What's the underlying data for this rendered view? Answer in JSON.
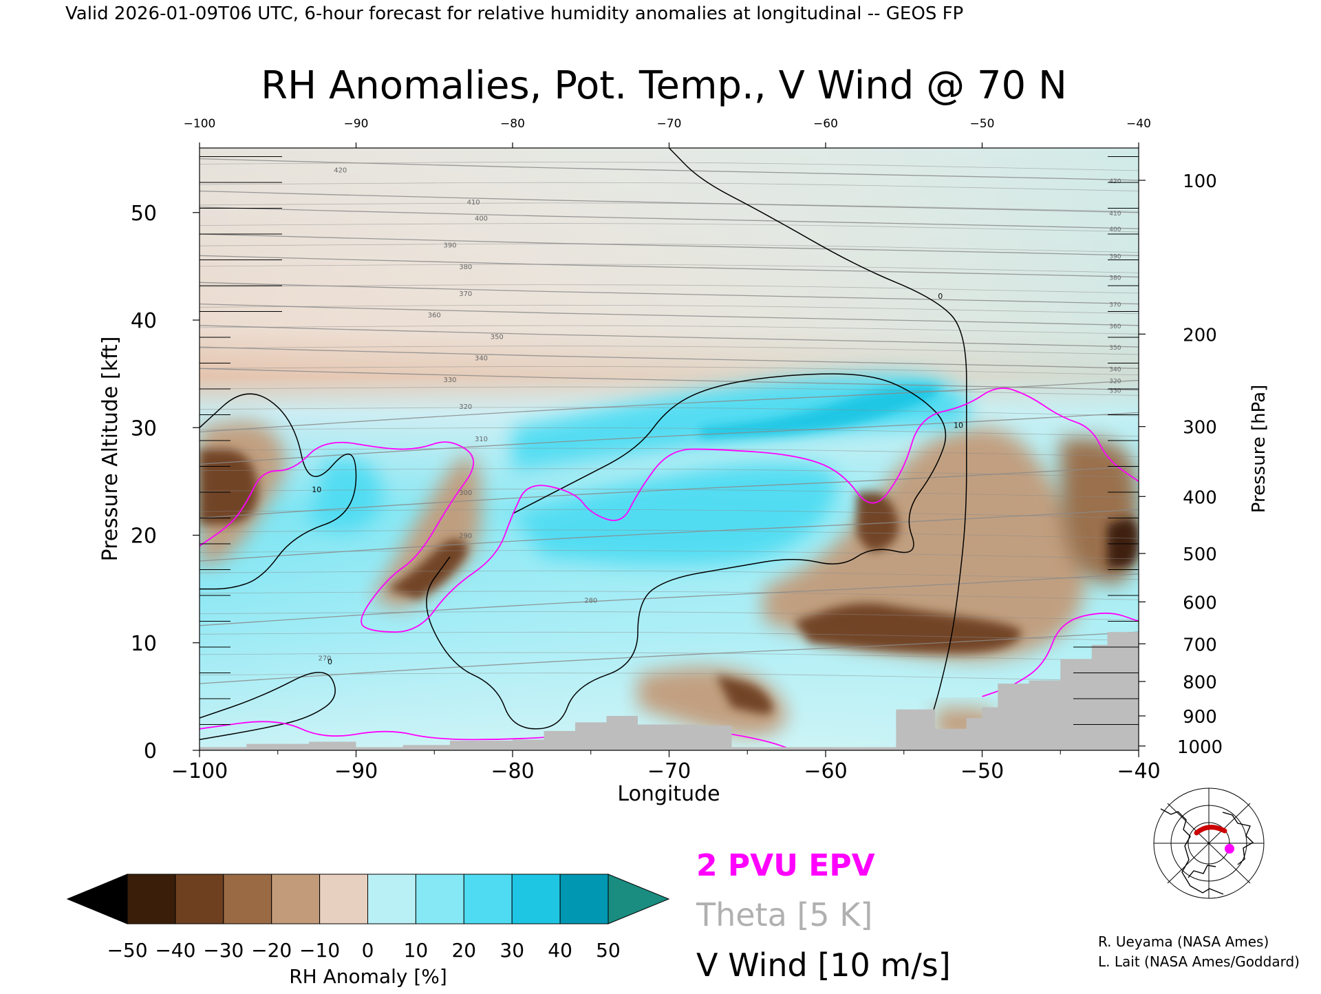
{
  "header": {
    "valid_line": "Valid 2026-01-09T06 UTC, 6-hour forecast for relative humidity anomalies at longitudinal -- GEOS FP"
  },
  "chart_data": {
    "type": "heatmap",
    "title": "RH Anomalies, Pot. Temp., V Wind @ 70 N",
    "xlabel": "Longitude",
    "ylabel": "Pressure Altitude [kft]",
    "y2label": "Pressure [hPa]",
    "xlim": [
      -100,
      -40
    ],
    "ylim": [
      0,
      56
    ],
    "x_ticks": [
      -100,
      -90,
      -80,
      -70,
      -60,
      -50,
      -40
    ],
    "y_ticks": [
      0,
      10,
      20,
      30,
      40,
      50
    ],
    "pressure_ticks": [
      {
        "label": "100",
        "kft": 53.0
      },
      {
        "label": "200",
        "kft": 38.7
      },
      {
        "label": "300",
        "kft": 30.1
      },
      {
        "label": "400",
        "kft": 23.6
      },
      {
        "label": "500",
        "kft": 18.3
      },
      {
        "label": "600",
        "kft": 13.8
      },
      {
        "label": "700",
        "kft": 9.9
      },
      {
        "label": "800",
        "kft": 6.4
      },
      {
        "label": "900",
        "kft": 3.2
      },
      {
        "label": "1000",
        "kft": 0.4
      }
    ],
    "rh_anomaly_regions": [
      {
        "anom": -25,
        "points": [
          [
            -100,
            30
          ],
          [
            -96,
            31
          ],
          [
            -94,
            27
          ],
          [
            -96,
            22
          ],
          [
            -98,
            18
          ],
          [
            -100,
            17
          ]
        ]
      },
      {
        "anom": -45,
        "points": [
          [
            -100,
            28
          ],
          [
            -97,
            28
          ],
          [
            -96,
            24
          ],
          [
            -97,
            21
          ],
          [
            -100,
            21
          ]
        ]
      },
      {
        "anom": -25,
        "points": [
          [
            -89,
            14
          ],
          [
            -87,
            19
          ],
          [
            -85,
            24
          ],
          [
            -83,
            28
          ],
          [
            -82,
            26
          ],
          [
            -82,
            19
          ],
          [
            -84,
            16
          ],
          [
            -87,
            13
          ]
        ]
      },
      {
        "anom": -40,
        "points": [
          [
            -88,
            15
          ],
          [
            -86,
            17
          ],
          [
            -84,
            20
          ],
          [
            -82.5,
            19
          ],
          [
            -84,
            16
          ],
          [
            -86,
            14
          ]
        ]
      },
      {
        "anom": -25,
        "points": [
          [
            -64,
            15
          ],
          [
            -60,
            18
          ],
          [
            -57,
            23
          ],
          [
            -55,
            27
          ],
          [
            -52,
            30
          ],
          [
            -48,
            30
          ],
          [
            -45,
            24
          ],
          [
            -43,
            18
          ],
          [
            -44,
            11
          ],
          [
            -49,
            8
          ],
          [
            -55,
            9
          ],
          [
            -60,
            10
          ],
          [
            -64,
            12
          ]
        ]
      },
      {
        "anom": -40,
        "points": [
          [
            -62,
            12
          ],
          [
            -58,
            14
          ],
          [
            -54,
            13
          ],
          [
            -49,
            12
          ],
          [
            -47,
            11
          ],
          [
            -49,
            9
          ],
          [
            -55,
            9
          ],
          [
            -61,
            10
          ]
        ]
      },
      {
        "anom": -40,
        "points": [
          [
            -58,
            24
          ],
          [
            -56,
            24
          ],
          [
            -55,
            20
          ],
          [
            -57,
            18
          ],
          [
            -58,
            20
          ]
        ]
      },
      {
        "anom": -30,
        "points": [
          [
            -45,
            29
          ],
          [
            -42,
            29
          ],
          [
            -40,
            27
          ],
          [
            -40,
            15
          ],
          [
            -44,
            16
          ],
          [
            -45,
            22
          ]
        ]
      },
      {
        "anom": -50,
        "points": [
          [
            -42,
            21
          ],
          [
            -40,
            22
          ],
          [
            -40,
            17
          ],
          [
            -42,
            17
          ]
        ]
      },
      {
        "anom": -25,
        "points": [
          [
            -72,
            7
          ],
          [
            -68,
            8
          ],
          [
            -64,
            7
          ],
          [
            -62,
            3
          ],
          [
            -64,
            1
          ],
          [
            -68,
            2
          ],
          [
            -72,
            4
          ]
        ]
      },
      {
        "anom": -40,
        "points": [
          [
            -67,
            7
          ],
          [
            -64,
            6
          ],
          [
            -63,
            3
          ],
          [
            -66,
            4
          ]
        ]
      },
      {
        "anom": -20,
        "points": [
          [
            -53,
            4
          ],
          [
            -49,
            4
          ],
          [
            -49,
            1
          ],
          [
            -53,
            1
          ]
        ]
      },
      {
        "anom": 30,
        "points": [
          [
            -80,
            30
          ],
          [
            -70,
            33
          ],
          [
            -60,
            35
          ],
          [
            -52,
            35
          ],
          [
            -50,
            30
          ],
          [
            -56,
            30
          ],
          [
            -70,
            28
          ],
          [
            -80,
            26
          ]
        ]
      },
      {
        "anom": 40,
        "points": [
          [
            -68,
            29
          ],
          [
            -60,
            29.5
          ],
          [
            -54,
            32
          ],
          [
            -52,
            34
          ],
          [
            -56,
            34
          ],
          [
            -62,
            31
          ],
          [
            -68,
            30
          ]
        ]
      },
      {
        "anom": 25,
        "points": [
          [
            -92,
            27
          ],
          [
            -89,
            27
          ],
          [
            -88,
            23
          ],
          [
            -90,
            20
          ],
          [
            -93,
            21
          ]
        ]
      },
      {
        "anom": 25,
        "points": [
          [
            -80,
            22
          ],
          [
            -72,
            25
          ],
          [
            -64,
            27
          ],
          [
            -58,
            26
          ],
          [
            -62,
            18
          ],
          [
            -70,
            17
          ],
          [
            -78,
            18
          ]
        ]
      }
    ],
    "theta_levels": [
      {
        "label": "270",
        "x": -92,
        "y": 8.6
      },
      {
        "label": "280",
        "x": -75,
        "y": 14
      },
      {
        "label": "290",
        "x": -83,
        "y": 20
      },
      {
        "label": "300",
        "x": -83,
        "y": 24
      },
      {
        "label": "310",
        "x": -82,
        "y": 29
      },
      {
        "label": "320",
        "x": -83,
        "y": 32
      },
      {
        "label": "330",
        "x": -84,
        "y": 34.5
      },
      {
        "label": "340",
        "x": -82,
        "y": 36.5
      },
      {
        "label": "350",
        "x": -81,
        "y": 38.5
      },
      {
        "label": "360",
        "x": -85,
        "y": 40.5
      },
      {
        "label": "370",
        "x": -83,
        "y": 42.5
      },
      {
        "label": "380",
        "x": -83,
        "y": 45
      },
      {
        "label": "390",
        "x": -84,
        "y": 47
      },
      {
        "label": "400",
        "x": -82,
        "y": 49.5
      },
      {
        "label": "410",
        "x": -82.5,
        "y": 51
      },
      {
        "label": "420",
        "x": -91,
        "y": 54
      }
    ],
    "v_wind_contours": [
      {
        "label": "0",
        "points": [
          [
            -70,
            56
          ],
          [
            -68,
            53
          ],
          [
            -64,
            50
          ],
          [
            -58,
            45
          ],
          [
            -53,
            42
          ],
          [
            -51,
            39
          ],
          [
            -51,
            30
          ],
          [
            -51,
            22
          ],
          [
            -51.5,
            15
          ],
          [
            -52,
            10
          ],
          [
            -53,
            4
          ],
          [
            -54,
            0
          ]
        ]
      },
      {
        "label": "10",
        "points": [
          [
            -80,
            22
          ],
          [
            -76,
            25
          ],
          [
            -72,
            28
          ],
          [
            -70,
            32
          ],
          [
            -67,
            34
          ],
          [
            -62,
            35
          ],
          [
            -57,
            35
          ],
          [
            -54,
            33
          ],
          [
            -52,
            30
          ],
          [
            -53,
            26
          ],
          [
            -55,
            22
          ],
          [
            -54,
            18
          ],
          [
            -57,
            19
          ],
          [
            -59,
            17
          ],
          [
            -62,
            18
          ],
          [
            -66,
            17
          ],
          [
            -70,
            16
          ],
          [
            -72,
            14
          ],
          [
            -72,
            8
          ],
          [
            -76,
            6
          ],
          [
            -77,
            2
          ],
          [
            -80,
            2
          ],
          [
            -81,
            6
          ],
          [
            -84,
            8
          ],
          [
            -86,
            14
          ],
          [
            -84,
            18
          ]
        ]
      },
      {
        "label": "10",
        "points": [
          [
            -100,
            30
          ],
          [
            -97,
            34
          ],
          [
            -94,
            31
          ],
          [
            -93,
            24
          ],
          [
            -90,
            29
          ],
          [
            -90,
            22
          ],
          [
            -94,
            20
          ],
          [
            -96,
            16
          ],
          [
            -98,
            15
          ],
          [
            -100,
            15
          ]
        ]
      },
      {
        "label": "0",
        "points": [
          [
            -100,
            3
          ],
          [
            -96,
            5
          ],
          [
            -92,
            8
          ],
          [
            -91,
            5
          ],
          [
            -93,
            3
          ],
          [
            -96,
            2
          ],
          [
            -100,
            1
          ]
        ]
      }
    ],
    "epv_2pvu": [
      {
        "points": [
          [
            -100,
            19
          ],
          [
            -98,
            21
          ],
          [
            -97,
            23
          ],
          [
            -96,
            26
          ],
          [
            -94,
            26
          ],
          [
            -92,
            29
          ],
          [
            -88,
            28
          ],
          [
            -86,
            28
          ],
          [
            -84,
            29
          ],
          [
            -82,
            27
          ],
          [
            -84,
            23
          ],
          [
            -86,
            18
          ],
          [
            -88,
            16
          ],
          [
            -90,
            12
          ],
          [
            -89,
            11
          ],
          [
            -86,
            11
          ],
          [
            -84,
            15
          ],
          [
            -81,
            18
          ],
          [
            -80,
            22
          ],
          [
            -79,
            25
          ],
          [
            -76,
            24
          ],
          [
            -75,
            22
          ],
          [
            -73,
            21
          ],
          [
            -72,
            24
          ],
          [
            -70,
            28
          ],
          [
            -67,
            28
          ],
          [
            -62,
            27.5
          ],
          [
            -59,
            26
          ],
          [
            -57,
            22
          ],
          [
            -55,
            26
          ],
          [
            -54,
            31
          ],
          [
            -51,
            32
          ],
          [
            -49,
            34
          ],
          [
            -47,
            33
          ],
          [
            -45,
            31
          ],
          [
            -43,
            30
          ],
          [
            -42,
            27
          ],
          [
            -40,
            25
          ]
        ]
      },
      {
        "points": [
          [
            -100,
            2
          ],
          [
            -95,
            3
          ],
          [
            -92,
            1
          ],
          [
            -88,
            2
          ],
          [
            -85,
            1
          ],
          [
            -80,
            1
          ],
          [
            -75,
            1.5
          ],
          [
            -68,
            2
          ],
          [
            -64,
            1
          ],
          [
            -62,
            0
          ]
        ]
      },
      {
        "points": [
          [
            -40,
            12
          ],
          [
            -42,
            13
          ],
          [
            -45,
            12
          ],
          [
            -46,
            8
          ],
          [
            -48,
            6
          ],
          [
            -50,
            5
          ]
        ]
      }
    ],
    "terrain_kft_by_lon": [
      {
        "lon": -100,
        "h": 0.3
      },
      {
        "lon": -97,
        "h": 0.6
      },
      {
        "lon": -93,
        "h": 0.8
      },
      {
        "lon": -90,
        "h": 0.3
      },
      {
        "lon": -87,
        "h": 0.5
      },
      {
        "lon": -84,
        "h": 0.9
      },
      {
        "lon": -80,
        "h": 1.0
      },
      {
        "lon": -78,
        "h": 1.8
      },
      {
        "lon": -76,
        "h": 2.6
      },
      {
        "lon": -74,
        "h": 3.2
      },
      {
        "lon": -72,
        "h": 2.4
      },
      {
        "lon": -68,
        "h": 2.3
      },
      {
        "lon": -66,
        "h": 0.3
      },
      {
        "lon": -56,
        "h": 0.3
      },
      {
        "lon": -55.5,
        "h": 3.8
      },
      {
        "lon": -53,
        "h": 2.0
      },
      {
        "lon": -51,
        "h": 3.0
      },
      {
        "lon": -50,
        "h": 4.0
      },
      {
        "lon": -49,
        "h": 6.2
      },
      {
        "lon": -47,
        "h": 6.5
      },
      {
        "lon": -45,
        "h": 8.5
      },
      {
        "lon": -43,
        "h": 9.8
      },
      {
        "lon": -42,
        "h": 11.0
      },
      {
        "lon": -40,
        "h": 11.0
      }
    ]
  },
  "colorbar": {
    "label": "RH Anomaly [%]",
    "ticks": [
      "-50",
      "-40",
      "-30",
      "-20",
      "-10",
      "0",
      "10",
      "20",
      "30",
      "40",
      "50"
    ],
    "colors": [
      "#3a1e0a",
      "#6e4020",
      "#9a6a44",
      "#c29b7a",
      "#e8d0c0",
      "#e6faf8",
      "#b9f0f5",
      "#86e8f4",
      "#4fdcf2",
      "#1ec6e4",
      "#0097b2"
    ],
    "under_color": "#000000",
    "over_color": "#1a8c80"
  },
  "legend": {
    "epv": "2 PVU EPV",
    "theta": "Theta [5 K]",
    "vwind": "V Wind [10 m/s]",
    "epv_color": "#ff00ff",
    "theta_color": "#b0b0b0"
  },
  "credits": {
    "line1": "R. Ueyama (NASA Ames)",
    "line2": "L. Lait (NASA Ames/Goddard)"
  },
  "colors": {
    "background": "#ffffff",
    "terrain": "#bdbdbd",
    "theta_line": "#8a8a8a",
    "vwind_line": "#000000",
    "epv_line": "#ff00ff",
    "map_marker": "#ff00ff",
    "map_track": "#cc0000"
  },
  "inset_map": {
    "icon": "polar-stereographic-locator-map"
  }
}
